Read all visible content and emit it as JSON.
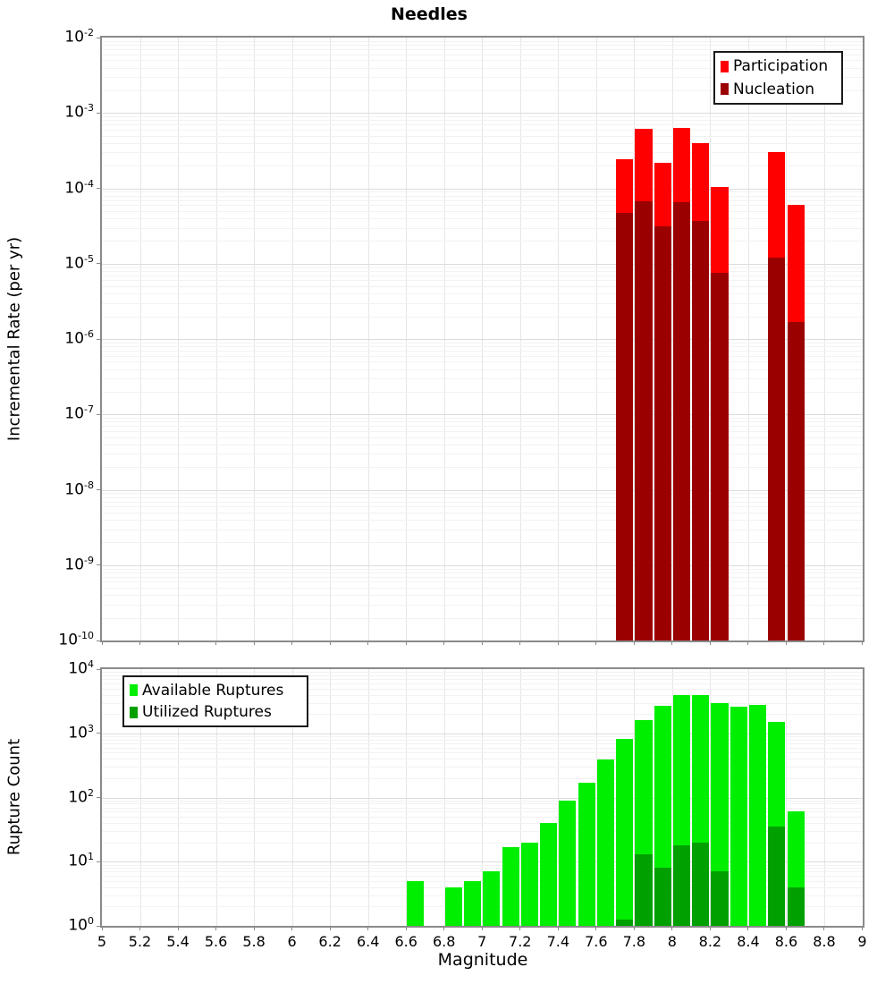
{
  "title": "Needles",
  "chart_data": [
    {
      "type": "bar",
      "title": "Needles",
      "ylabel": "Incremental Rate (per yr)",
      "xlabel": "",
      "y_axis": {
        "scale": "log",
        "min_exp": -10,
        "max_exp": -2,
        "tick_exponents": [
          -2,
          -3,
          -4,
          -5,
          -6,
          -7,
          -8,
          -9,
          -10
        ]
      },
      "x_axis": {
        "min": 5,
        "max": 9,
        "tick_step": 0.2
      },
      "bin_width": 0.1,
      "grid": true,
      "legend": {
        "position": "top-right",
        "entries": [
          {
            "label": "Participation",
            "color": "#fe0000"
          },
          {
            "label": "Nucleation",
            "color": "#9b0000"
          }
        ]
      },
      "series": [
        {
          "name": "Participation",
          "color": "#fe0000",
          "x": [
            7.75,
            7.85,
            7.95,
            8.05,
            8.15,
            8.25,
            8.55,
            8.65
          ],
          "values": [
            0.00024,
            0.00061,
            0.00022,
            0.00063,
            0.0004,
            0.000105,
            0.0003,
            6e-05
          ]
        },
        {
          "name": "Nucleation",
          "color": "#9b0000",
          "x": [
            7.75,
            7.85,
            7.95,
            8.05,
            8.15,
            8.25,
            8.55,
            8.65
          ],
          "values": [
            4.7e-05,
            6.8e-05,
            3.1e-05,
            6.5e-05,
            3.7e-05,
            7.5e-06,
            1.2e-05,
            1.7e-06
          ]
        }
      ]
    },
    {
      "type": "bar",
      "title": "",
      "ylabel": "Rupture Count",
      "xlabel": "Magnitude",
      "y_axis": {
        "scale": "log",
        "min_exp": 0,
        "max_exp": 4,
        "tick_exponents": [
          4,
          3,
          2,
          1,
          0
        ]
      },
      "x_axis": {
        "min": 5,
        "max": 9,
        "tick_step": 0.2,
        "tick_labels": [
          "5",
          "5.2",
          "5.4",
          "5.6",
          "5.8",
          "6",
          "6.2",
          "6.4",
          "6.6",
          "6.8",
          "7",
          "7.2",
          "7.4",
          "7.6",
          "7.8",
          "8",
          "8.2",
          "8.4",
          "8.6",
          "8.8",
          "9"
        ]
      },
      "bin_width": 0.1,
      "grid": true,
      "legend": {
        "position": "top-left",
        "entries": [
          {
            "label": "Available Ruptures",
            "color": "#00ee00"
          },
          {
            "label": "Utilized Ruptures",
            "color": "#00a000"
          }
        ]
      },
      "series": [
        {
          "name": "Available Ruptures",
          "color": "#00ee00",
          "x": [
            6.65,
            6.85,
            6.95,
            7.05,
            7.15,
            7.25,
            7.35,
            7.45,
            7.55,
            7.65,
            7.75,
            7.85,
            7.95,
            8.05,
            8.15,
            8.25,
            8.35,
            8.45,
            8.55,
            8.65
          ],
          "values": [
            5,
            4,
            5,
            7,
            17,
            20,
            40,
            90,
            170,
            390,
            830,
            1600,
            2700,
            4000,
            3900,
            3000,
            2600,
            2800,
            1500,
            60
          ]
        },
        {
          "name": "Utilized Ruptures",
          "color": "#00a000",
          "x": [
            7.75,
            7.85,
            7.95,
            8.05,
            8.15,
            8.25,
            8.55,
            8.65
          ],
          "values": [
            1,
            13,
            8,
            18,
            20,
            7,
            35,
            4
          ]
        }
      ]
    }
  ]
}
